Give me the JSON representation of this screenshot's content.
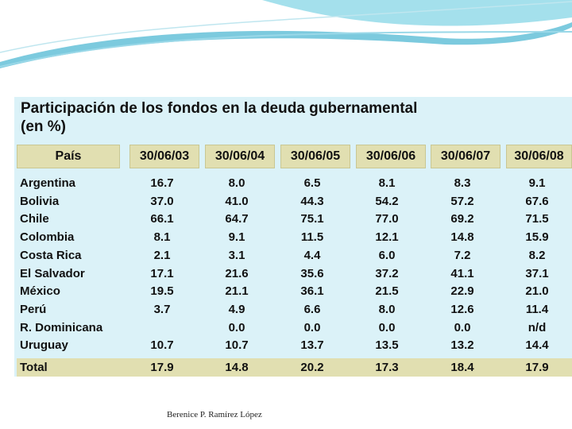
{
  "title_line1": "Participación de los fondos en la deuda gubernamental",
  "title_line2": "(en %)",
  "column_header_country": "País",
  "columns": [
    "30/06/03",
    "30/06/04",
    "30/06/05",
    "30/06/06",
    "30/06/07",
    "30/06/08"
  ],
  "rows": [
    {
      "country": "Argentina",
      "values": [
        "16.7",
        "8.0",
        "6.5",
        "8.1",
        "8.3",
        "9.1"
      ]
    },
    {
      "country": "Bolivia",
      "values": [
        "37.0",
        "41.0",
        "44.3",
        "54.2",
        "57.2",
        "67.6"
      ]
    },
    {
      "country": "Chile",
      "values": [
        "66.1",
        "64.7",
        "75.1",
        "77.0",
        "69.2",
        "71.5"
      ]
    },
    {
      "country": "Colombia",
      "values": [
        "8.1",
        "9.1",
        "11.5",
        "12.1",
        "14.8",
        "15.9"
      ]
    },
    {
      "country": "Costa Rica",
      "values": [
        "2.1",
        "3.1",
        "4.4",
        "6.0",
        "7.2",
        "8.2"
      ]
    },
    {
      "country": "El Salvador",
      "values": [
        "17.1",
        "21.6",
        "35.6",
        "37.2",
        "41.1",
        "37.1"
      ]
    },
    {
      "country": "México",
      "values": [
        "19.5",
        "21.1",
        "36.1",
        "21.5",
        "22.9",
        "21.0"
      ]
    },
    {
      "country": "Perú",
      "values": [
        "3.7",
        "4.9",
        "6.6",
        "8.0",
        "12.6",
        "11.4"
      ]
    },
    {
      "country": "R. Dominicana",
      "values": [
        "",
        "0.0",
        "0.0",
        "0.0",
        "0.0",
        "n/d"
      ]
    },
    {
      "country": "Uruguay",
      "values": [
        "10.7",
        "10.7",
        "13.7",
        "13.5",
        "13.2",
        "14.4"
      ]
    }
  ],
  "total": {
    "country": "Total",
    "values": [
      "17.9",
      "14.8",
      "20.2",
      "17.3",
      "18.4",
      "17.9"
    ]
  },
  "footer_author": "Berenice P. Ramírez López",
  "colors": {
    "panel": "#dbf2f8",
    "header_band": "#e1dfb1",
    "swoosh": "#6cc7dd"
  }
}
